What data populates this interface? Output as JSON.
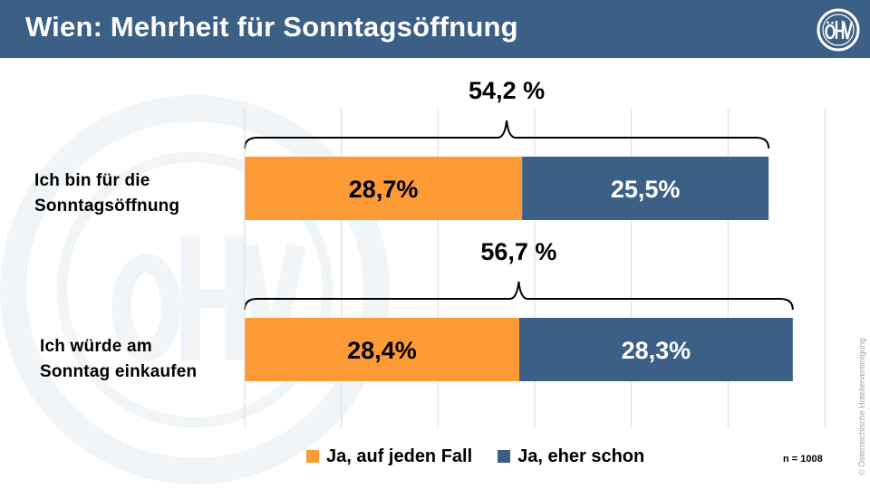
{
  "header": {
    "title": "Wien: Mehrheit für Sonntagsöffnung",
    "logo_icon": "oehv-logo-icon"
  },
  "colors": {
    "header_bg": "#3c5f86",
    "series_1": "#fc9a35",
    "series_2": "#3c5f86"
  },
  "chart_data": {
    "type": "bar",
    "orientation": "horizontal",
    "stacked": true,
    "title": "Wien: Mehrheit für Sonntagsöffnung",
    "categories": [
      "Ich bin für die Sonntagsöffnung",
      "Ich würde am Sonntag einkaufen"
    ],
    "category_lines": [
      [
        "Ich bin für die",
        "Sonntagsöffnung"
      ],
      [
        "Ich würde am",
        "Sonntag einkaufen"
      ]
    ],
    "series": [
      {
        "name": "Ja, auf jeden Fall",
        "values": [
          28.7,
          28.4
        ],
        "labels": [
          "28,7%",
          "28,4%"
        ],
        "color": "#fc9a35"
      },
      {
        "name": "Ja, eher schon",
        "values": [
          25.5,
          28.3
        ],
        "labels": [
          "25,5%",
          "28,3%"
        ],
        "color": "#3c5f86"
      }
    ],
    "totals": [
      "54,2 %",
      "56,7 %"
    ],
    "xlim": [
      0,
      60
    ],
    "grid": "vertical",
    "legend_position": "bottom",
    "xlabel": "",
    "ylabel": ""
  },
  "sample_note": "n = 1008",
  "copyright": "© Österreichische Hoteliervereinigung"
}
